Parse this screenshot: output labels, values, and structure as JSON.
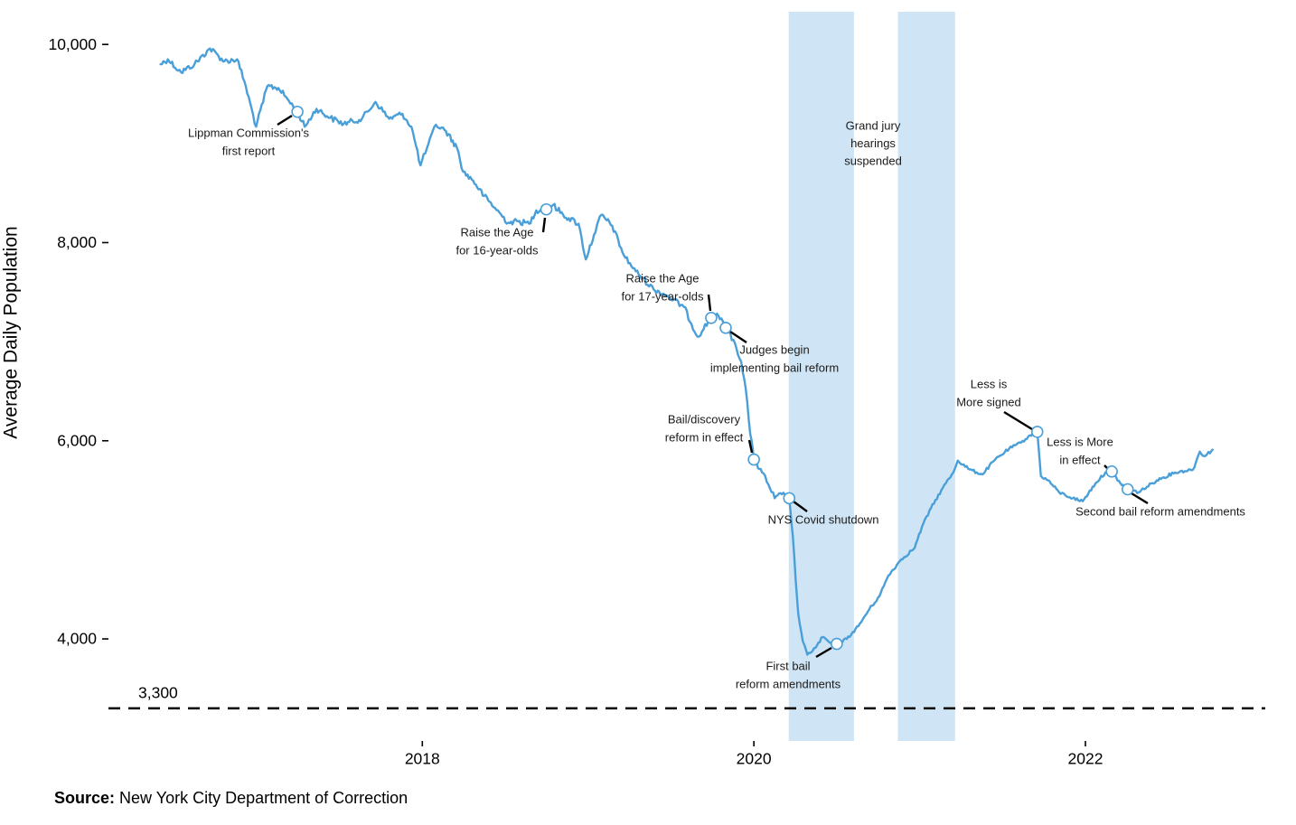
{
  "chart_data": {
    "type": "line",
    "title": "",
    "xlabel": "",
    "ylabel": "Average Daily Population",
    "xlim": [
      "2016-02-09",
      "2023-02-01"
    ],
    "ylim": [
      2970,
      10330
    ],
    "grid": false,
    "legend": "none",
    "x_ticks": [
      {
        "date": "2018-01-01",
        "label": "2018"
      },
      {
        "date": "2020-01-01",
        "label": "2020"
      },
      {
        "date": "2022-01-01",
        "label": "2022"
      }
    ],
    "y_ticks": [
      {
        "value": 4000,
        "label": "4,000"
      },
      {
        "value": 6000,
        "label": "6,000"
      },
      {
        "value": 8000,
        "label": "8,000"
      },
      {
        "value": 10000,
        "label": "10,000"
      }
    ],
    "series": [
      {
        "name": "Average Daily Population",
        "color": "#4a9fd8",
        "points": [
          [
            "2016-06-03",
            9800
          ],
          [
            "2016-06-19",
            9850
          ],
          [
            "2016-07-18",
            9720
          ],
          [
            "2016-08-17",
            9800
          ],
          [
            "2016-09-20",
            9960
          ],
          [
            "2016-10-22",
            9830
          ],
          [
            "2016-11-19",
            9850
          ],
          [
            "2016-12-05",
            9630
          ],
          [
            "2016-12-31",
            9170
          ],
          [
            "2017-01-25",
            9580
          ],
          [
            "2017-02-18",
            9560
          ],
          [
            "2017-03-10",
            9450
          ],
          [
            "2017-04-01",
            9320
          ],
          [
            "2017-04-17",
            9170
          ],
          [
            "2017-05-13",
            9350
          ],
          [
            "2017-06-12",
            9260
          ],
          [
            "2017-07-12",
            9200
          ],
          [
            "2017-08-21",
            9250
          ],
          [
            "2017-09-20",
            9420
          ],
          [
            "2017-10-20",
            9250
          ],
          [
            "2017-11-18",
            9300
          ],
          [
            "2017-12-08",
            9170
          ],
          [
            "2017-12-28",
            8780
          ],
          [
            "2018-01-11",
            8950
          ],
          [
            "2018-01-31",
            9190
          ],
          [
            "2018-02-22",
            9125
          ],
          [
            "2018-03-18",
            8960
          ],
          [
            "2018-04-01",
            8715
          ],
          [
            "2018-04-23",
            8625
          ],
          [
            "2018-05-17",
            8470
          ],
          [
            "2018-06-10",
            8350
          ],
          [
            "2018-07-09",
            8200
          ],
          [
            "2018-07-31",
            8215
          ],
          [
            "2018-08-24",
            8190
          ],
          [
            "2018-09-09",
            8325
          ],
          [
            "2018-10-01",
            8335
          ],
          [
            "2018-10-16",
            8380
          ],
          [
            "2018-11-07",
            8280
          ],
          [
            "2018-12-11",
            8190
          ],
          [
            "2018-12-27",
            7830
          ],
          [
            "2019-01-14",
            8080
          ],
          [
            "2019-01-30",
            8280
          ],
          [
            "2019-02-23",
            8170
          ],
          [
            "2019-03-21",
            7870
          ],
          [
            "2019-04-16",
            7710
          ],
          [
            "2019-05-25",
            7530
          ],
          [
            "2019-06-22",
            7470
          ],
          [
            "2019-07-31",
            7350
          ],
          [
            "2019-08-30",
            7050
          ],
          [
            "2019-09-29",
            7240
          ],
          [
            "2019-10-15",
            7260
          ],
          [
            "2019-10-31",
            7140
          ],
          [
            "2019-11-20",
            6990
          ],
          [
            "2019-12-04",
            6800
          ],
          [
            "2019-12-14",
            6530
          ],
          [
            "2019-12-24",
            6070
          ],
          [
            "2020-01-01",
            5810
          ],
          [
            "2020-01-19",
            5680
          ],
          [
            "2020-02-02",
            5560
          ],
          [
            "2020-02-16",
            5420
          ],
          [
            "2020-03-03",
            5460
          ],
          [
            "2020-03-19",
            5420
          ],
          [
            "2020-03-27",
            5045
          ],
          [
            "2020-04-02",
            4610
          ],
          [
            "2020-04-08",
            4250
          ],
          [
            "2020-04-18",
            3975
          ],
          [
            "2020-04-28",
            3840
          ],
          [
            "2020-05-16",
            3910
          ],
          [
            "2020-06-01",
            4020
          ],
          [
            "2020-06-17",
            3960
          ],
          [
            "2020-07-02",
            3950
          ],
          [
            "2020-07-24",
            4000
          ],
          [
            "2020-08-19",
            4130
          ],
          [
            "2020-09-12",
            4300
          ],
          [
            "2020-10-04",
            4430
          ],
          [
            "2020-10-24",
            4640
          ],
          [
            "2020-11-21",
            4800
          ],
          [
            "2020-12-21",
            4920
          ],
          [
            "2021-01-06",
            5130
          ],
          [
            "2021-01-26",
            5320
          ],
          [
            "2021-02-21",
            5525
          ],
          [
            "2021-03-16",
            5680
          ],
          [
            "2021-03-26",
            5800
          ],
          [
            "2021-04-21",
            5710
          ],
          [
            "2021-05-19",
            5660
          ],
          [
            "2021-06-14",
            5800
          ],
          [
            "2021-07-17",
            5920
          ],
          [
            "2021-08-12",
            5980
          ],
          [
            "2021-09-01",
            6055
          ],
          [
            "2021-09-17",
            6090
          ],
          [
            "2021-09-25",
            5645
          ],
          [
            "2021-10-11",
            5600
          ],
          [
            "2021-11-04",
            5480
          ],
          [
            "2021-12-04",
            5420
          ],
          [
            "2021-12-26",
            5390
          ],
          [
            "2022-01-23",
            5570
          ],
          [
            "2022-02-14",
            5680
          ],
          [
            "2022-02-28",
            5690
          ],
          [
            "2022-03-19",
            5570
          ],
          [
            "2022-04-04",
            5510
          ],
          [
            "2022-04-28",
            5480
          ],
          [
            "2022-06-07",
            5600
          ],
          [
            "2022-07-17",
            5680
          ],
          [
            "2022-08-26",
            5710
          ],
          [
            "2022-09-10",
            5890
          ],
          [
            "2022-09-20",
            5845
          ],
          [
            "2022-10-08",
            5910
          ]
        ]
      }
    ],
    "reference_line": {
      "value": 3300,
      "label": "3,300",
      "style": "dashed",
      "color": "#000000"
    },
    "shaded_periods": [
      {
        "start": "2020-03-18",
        "end": "2020-08-09",
        "color": "#cfe5f5"
      },
      {
        "start": "2020-11-14",
        "end": "2021-03-20",
        "color": "#cfe5f5"
      }
    ],
    "shaded_label": {
      "lines": [
        "Grand jury",
        "hearings",
        "suspended"
      ]
    },
    "annotations": [
      {
        "id": "lippman",
        "lines": [
          "Lippman Commission's",
          "first report"
        ],
        "date": "2017-04-01",
        "value": 9320
      },
      {
        "id": "rta16",
        "lines": [
          "Raise the Age",
          "for 16-year-olds"
        ],
        "date": "2018-10-01",
        "value": 8335
      },
      {
        "id": "rta17",
        "lines": [
          "Raise the Age",
          "for 17-year-olds"
        ],
        "date": "2019-09-29",
        "value": 7240
      },
      {
        "id": "judges",
        "lines": [
          "Judges begin",
          "implementing bail reform"
        ],
        "date": "2019-10-31",
        "value": 7140
      },
      {
        "id": "bail",
        "lines": [
          "Bail/discovery",
          "reform in effect"
        ],
        "date": "2020-01-01",
        "value": 5810
      },
      {
        "id": "covid",
        "lines": [
          "NYS Covid shutdown"
        ],
        "date": "2020-03-19",
        "value": 5420
      },
      {
        "id": "amend1",
        "lines": [
          "First bail",
          "reform amendments"
        ],
        "date": "2020-07-02",
        "value": 3950
      },
      {
        "id": "lim_signed",
        "lines": [
          "Less is",
          "More signed"
        ],
        "date": "2021-09-17",
        "value": 6090
      },
      {
        "id": "lim_effect",
        "lines": [
          "Less is More",
          "in effect"
        ],
        "date": "2022-02-28",
        "value": 5690
      },
      {
        "id": "amend2",
        "lines": [
          "Second bail reform amendments"
        ],
        "date": "2022-04-04",
        "value": 5510
      }
    ]
  },
  "source": {
    "label": "Source:",
    "text": "New York City Department of Correction"
  }
}
